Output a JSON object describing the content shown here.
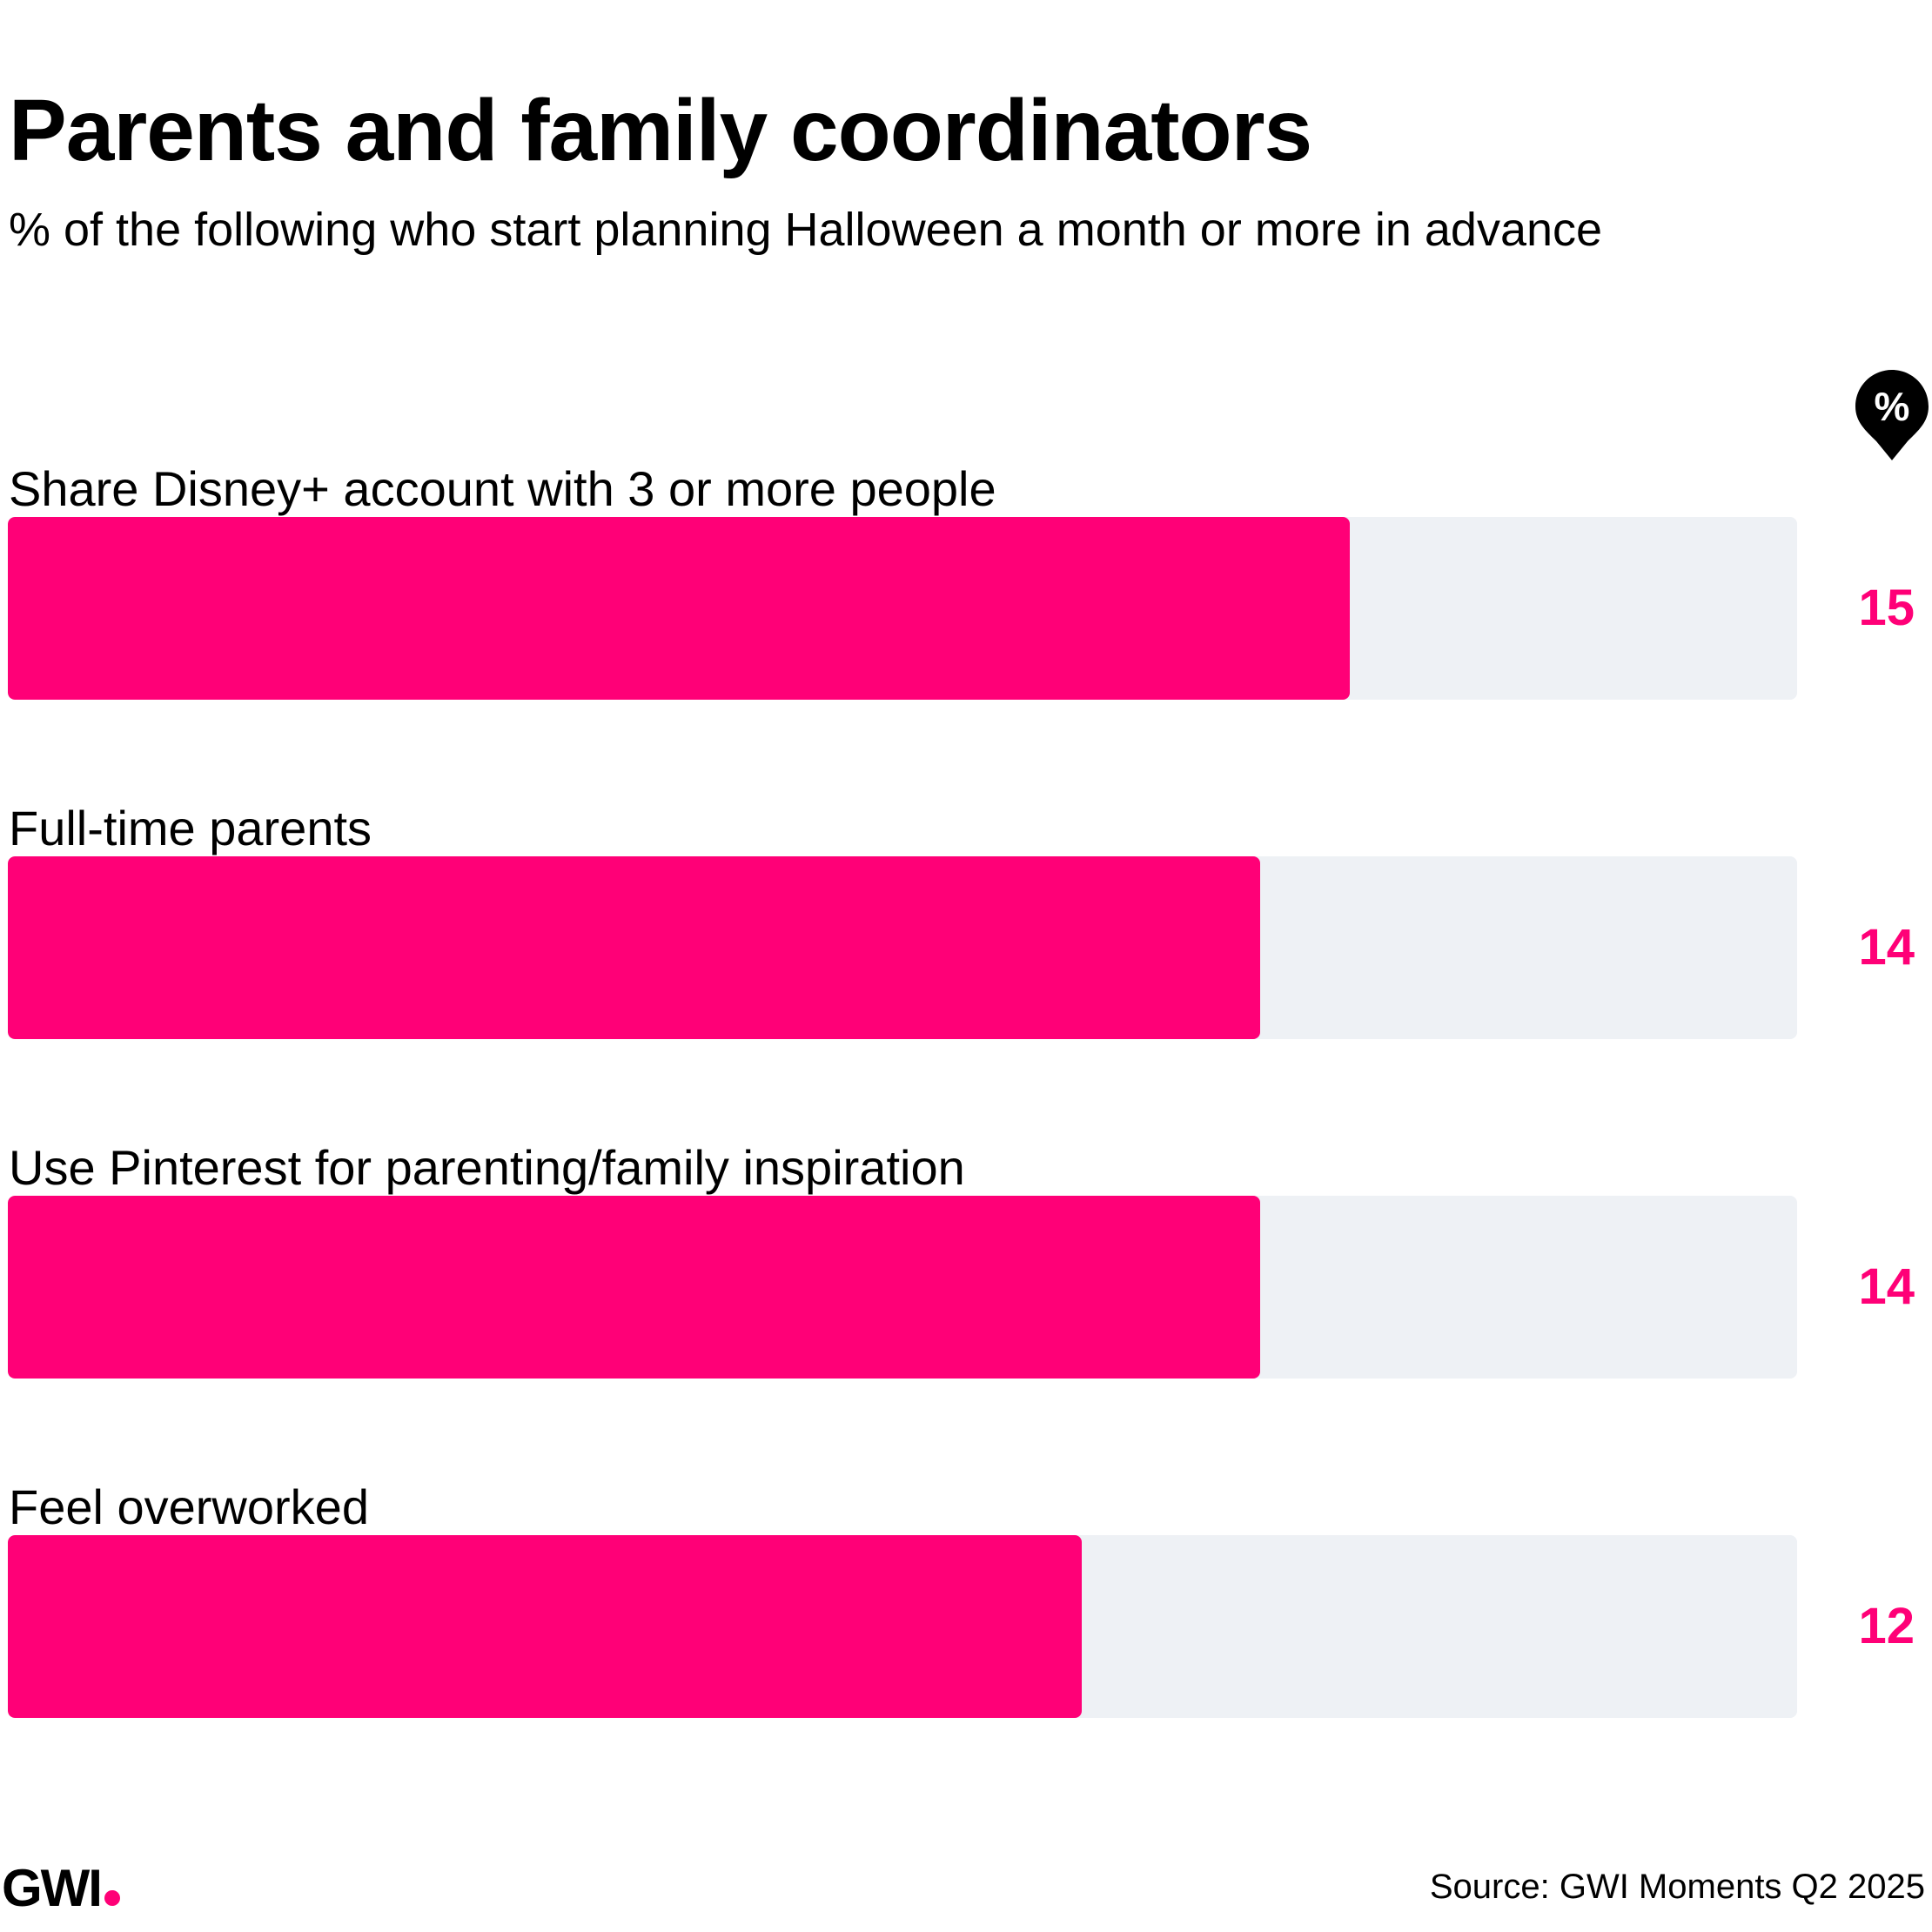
{
  "chart_data": {
    "type": "bar",
    "orientation": "horizontal",
    "title": "Parents and family coordinators",
    "subtitle": "% of the following who start planning Halloween a month or more in advance",
    "unit_badge": "%",
    "categories": [
      "Share Disney+ account with 3 or more people",
      "Full-time parents",
      "Use Pinterest for parenting/family inspiration",
      "Feel overworked"
    ],
    "values": [
      15,
      14,
      14,
      12
    ],
    "xlim": [
      0,
      20
    ],
    "grid": false,
    "bar_color": "#ff0077",
    "track_color": "#eef1f5"
  },
  "footer": {
    "logo": "GWI",
    "source": "Source: GWI Moments Q2 2025"
  }
}
